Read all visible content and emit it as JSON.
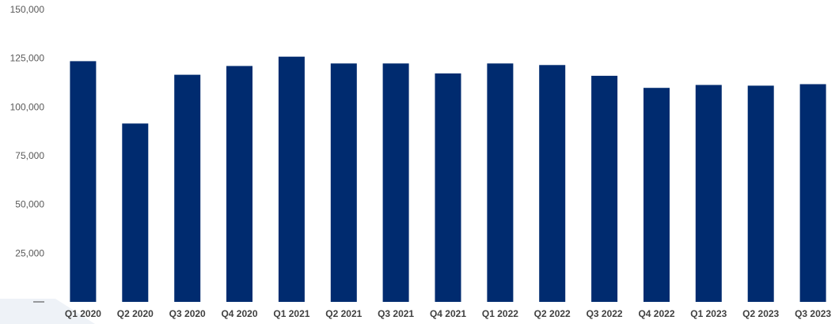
{
  "chart_data": {
    "type": "bar",
    "title": "",
    "xlabel": "",
    "ylabel": "",
    "ylim": [
      0,
      150000
    ],
    "y_ticks": [
      150000,
      125000,
      100000,
      75000,
      50000,
      25000
    ],
    "y_tick_labels": [
      "150,000",
      "125,000",
      "100,000",
      "75,000",
      "50,000",
      "25,000"
    ],
    "grid": false,
    "legend": "none",
    "categories": [
      "Q1 2020",
      "Q2 2020",
      "Q3 2020",
      "Q4 2020",
      "Q1 2021",
      "Q2 2021",
      "Q3 2021",
      "Q4 2021",
      "Q1 2022",
      "Q2 2022",
      "Q3 2022",
      "Q4 2022",
      "Q1 2023",
      "Q2 2023",
      "Q3 2023"
    ],
    "values": [
      123500,
      91500,
      116500,
      121000,
      125800,
      122300,
      122300,
      117200,
      122300,
      121500,
      116000,
      109800,
      111300,
      110900,
      111700
    ],
    "bar_color": "#002b6f"
  }
}
